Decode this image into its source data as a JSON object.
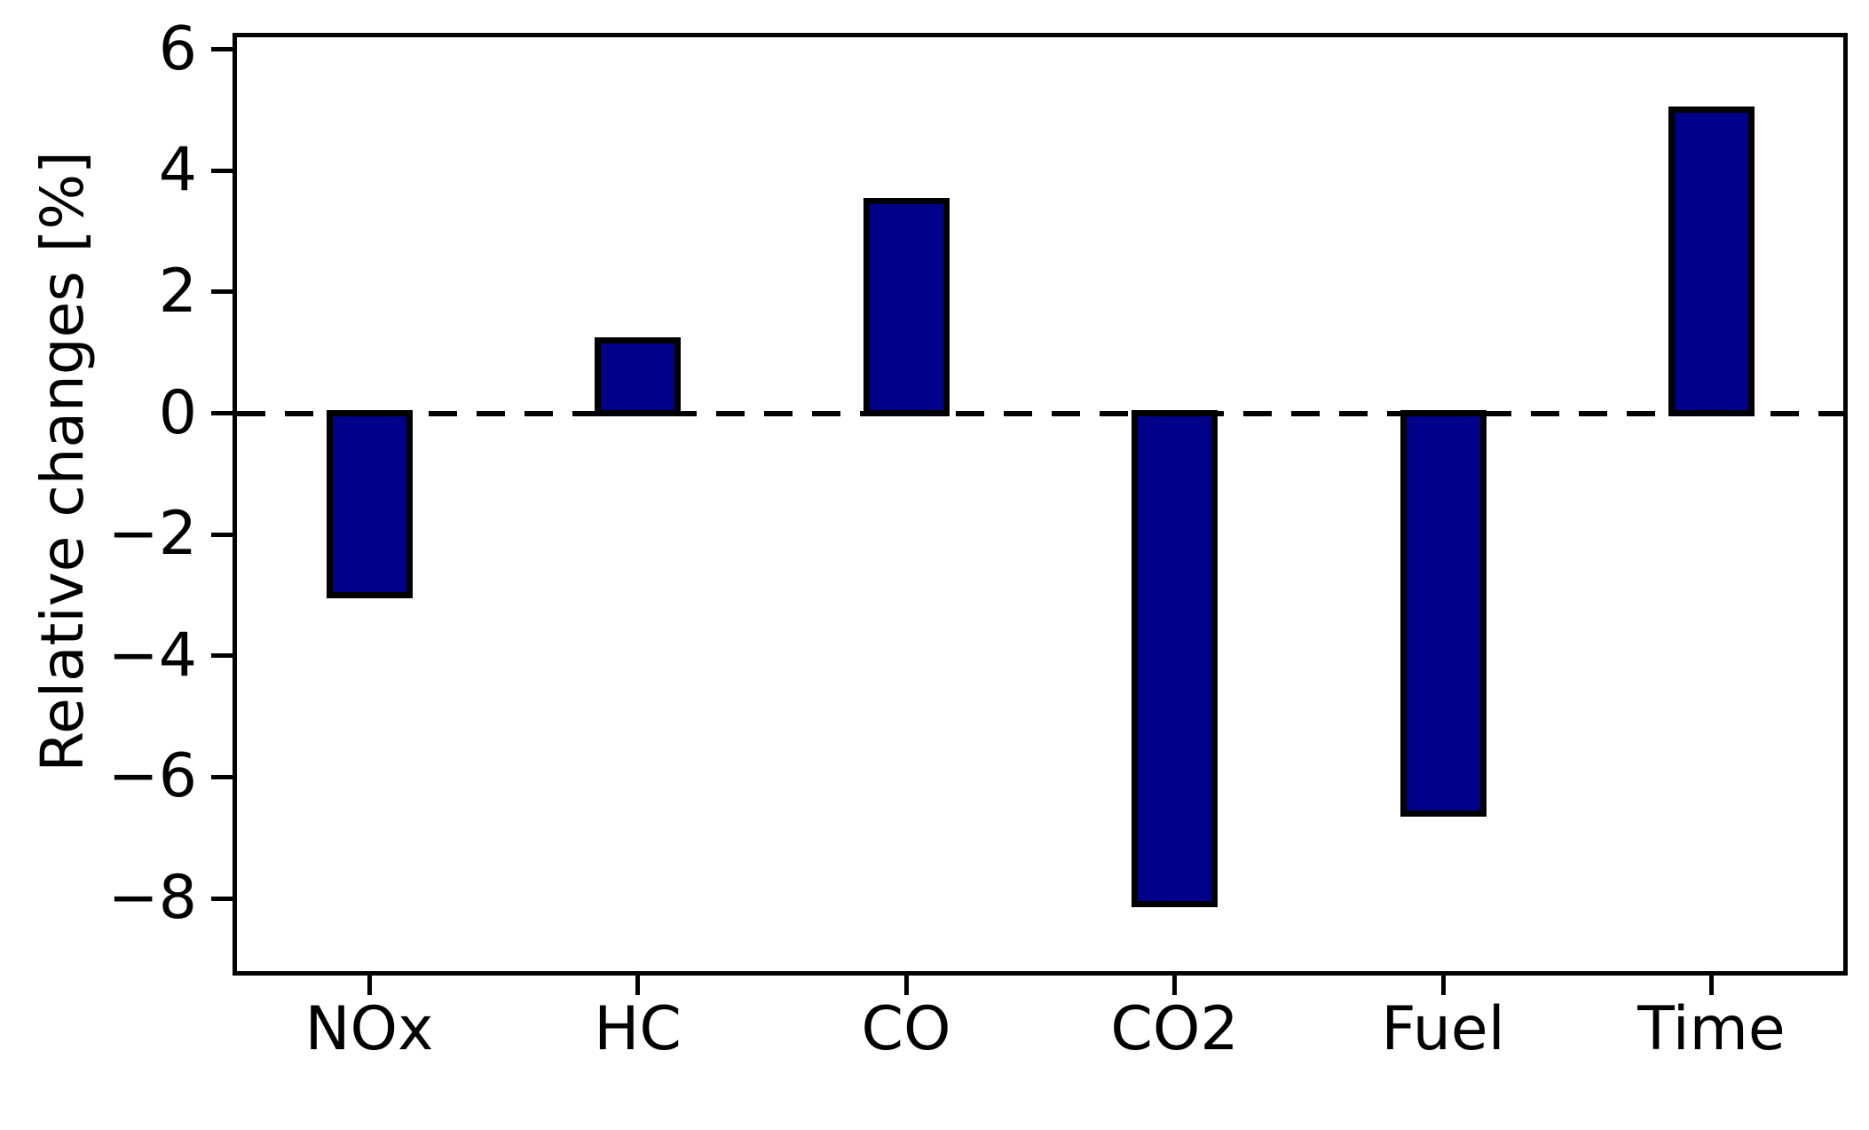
{
  "chart_data": {
    "type": "bar",
    "categories": [
      "NOx",
      "HC",
      "CO",
      "CO2",
      "Fuel",
      "Time"
    ],
    "values": [
      -3.0,
      1.2,
      3.5,
      -8.1,
      -6.6,
      5.0
    ],
    "title": "",
    "xlabel": "",
    "ylabel": "Relative changes [%]",
    "ylim": [
      -9.2,
      6.2
    ],
    "yticks": [
      6,
      4,
      2,
      0,
      -2,
      -4,
      -6,
      -8
    ],
    "ytick_labels": [
      "6",
      "4",
      "2",
      "0",
      "−2",
      "−4",
      "−6",
      "−8"
    ],
    "grid": false,
    "legend": null,
    "zero_line_style": "dashed",
    "colors": {
      "bar_fill": "#00008B",
      "bar_edge": "#000000",
      "axis": "#000000",
      "background": "#FFFFFF",
      "text": "#000000"
    }
  }
}
